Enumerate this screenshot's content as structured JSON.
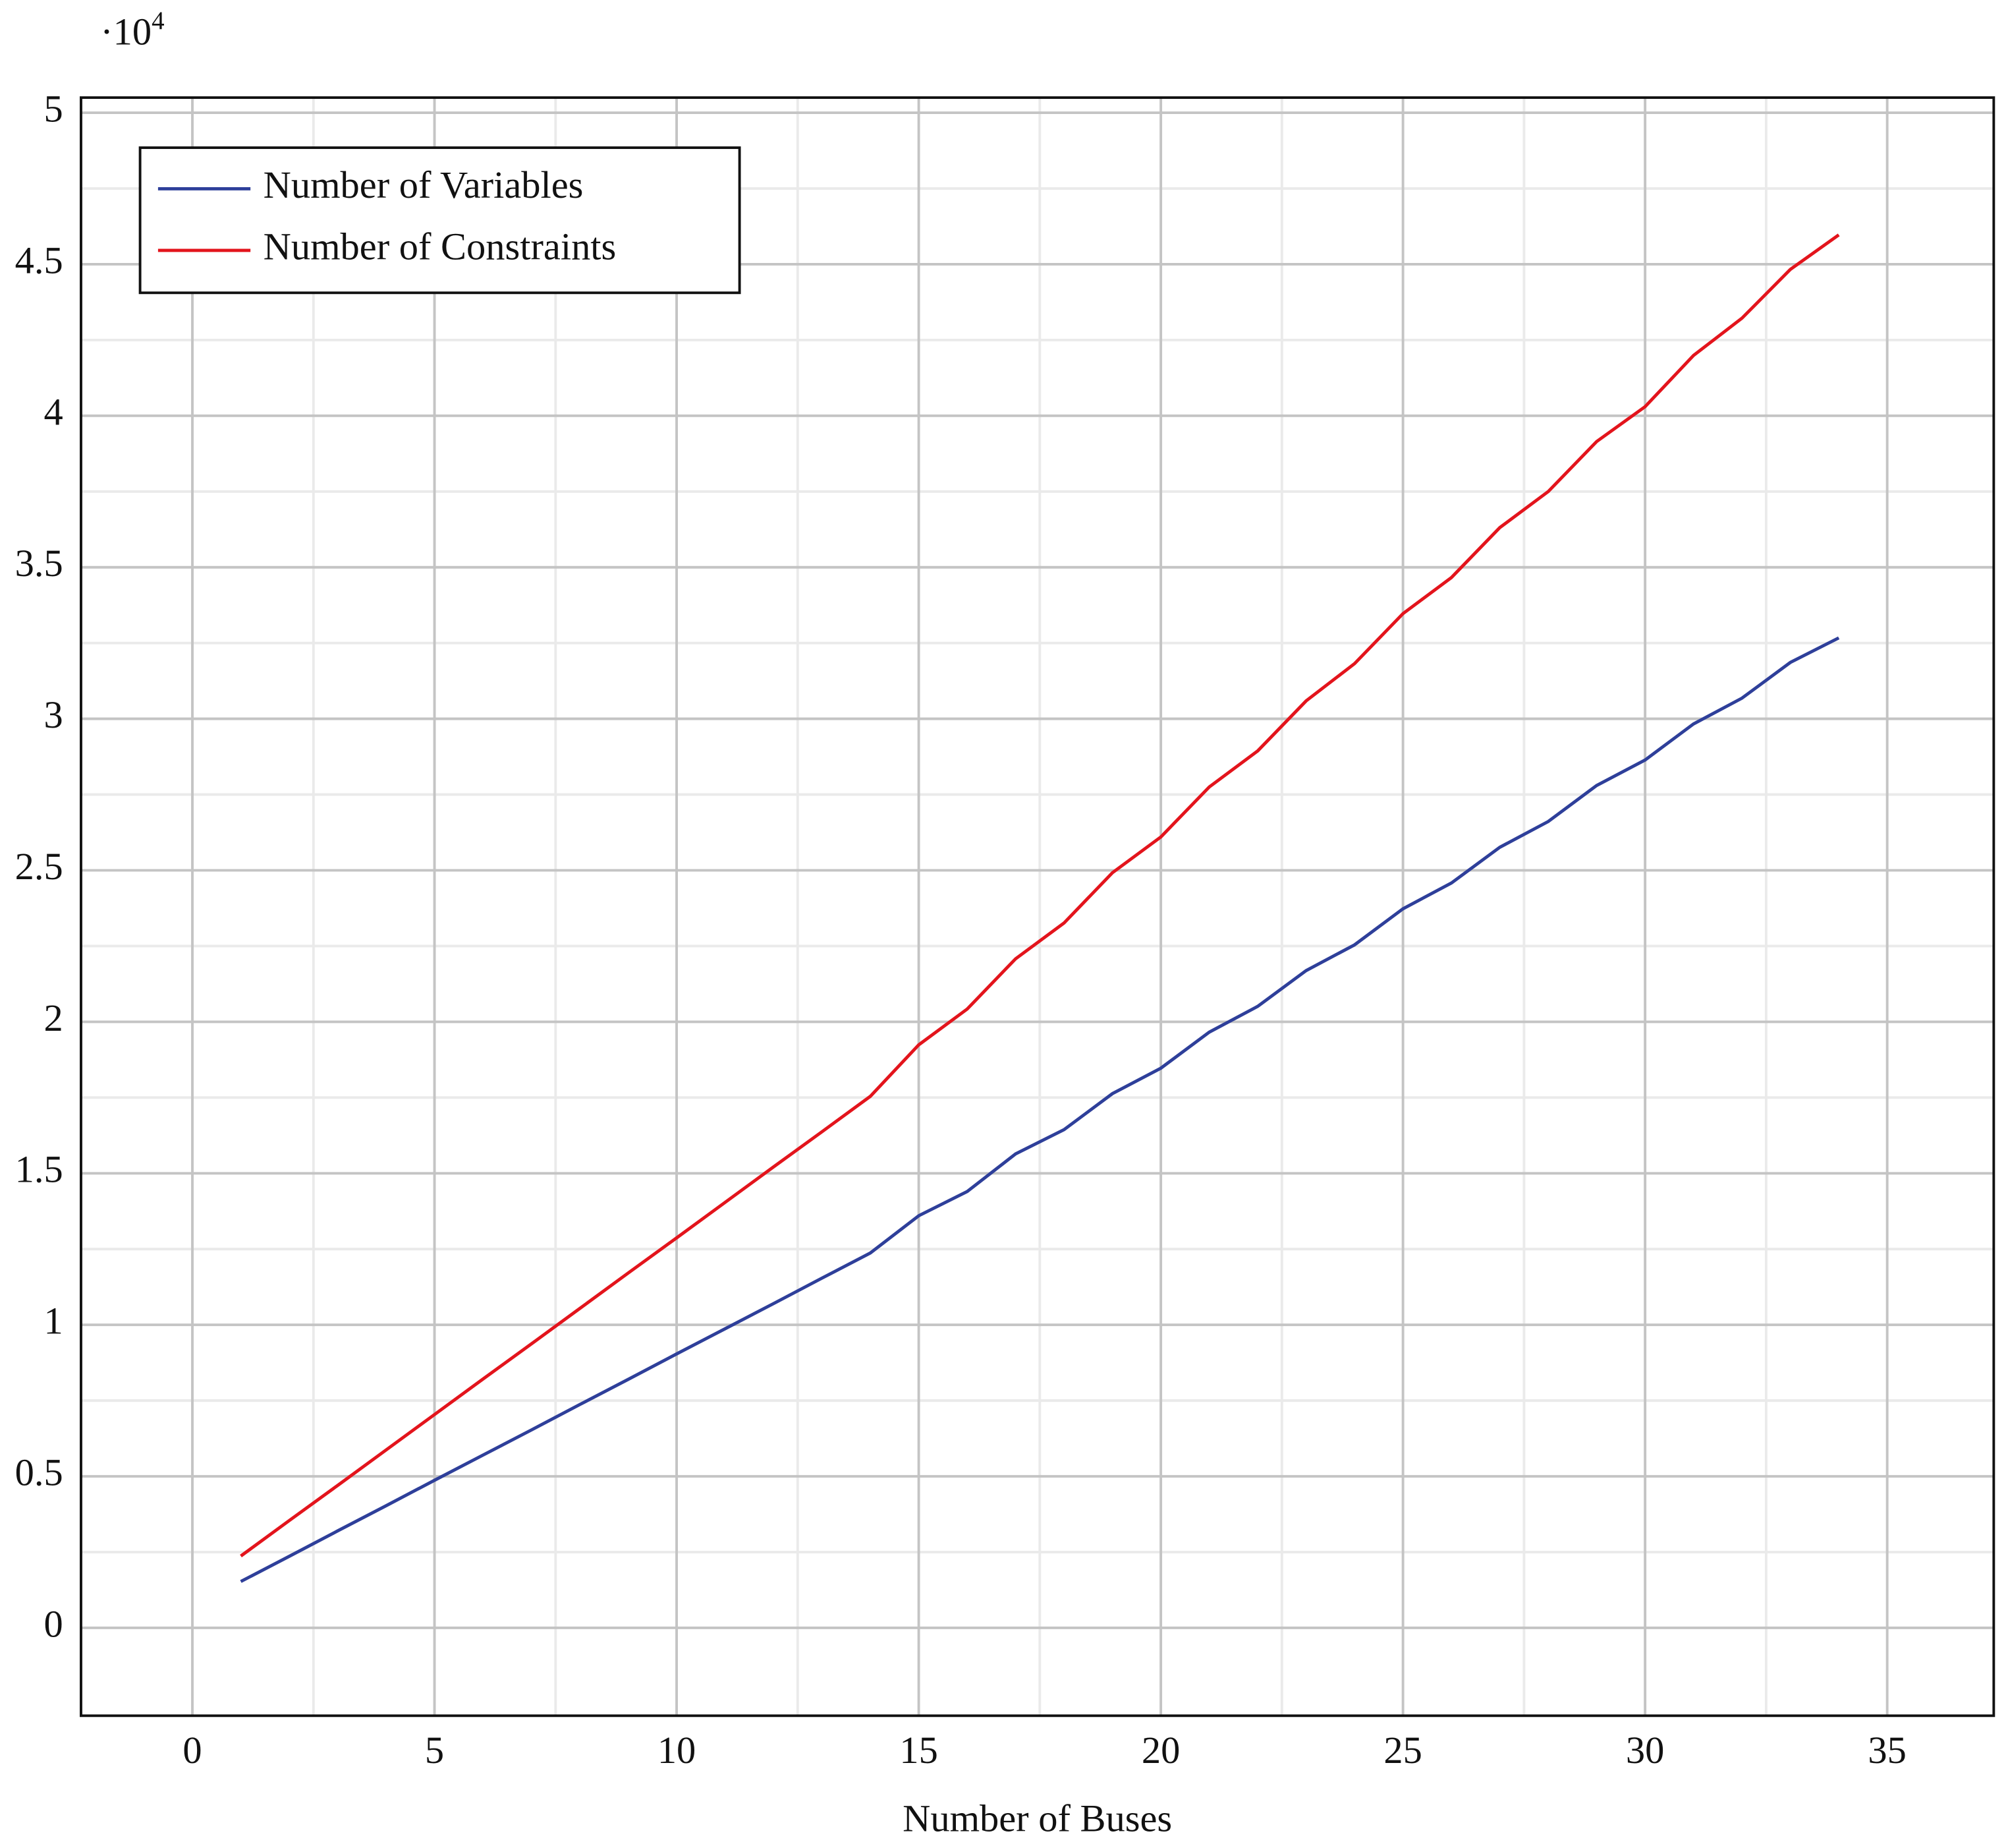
{
  "chart_data": {
    "type": "line",
    "xlabel": "Number of Buses",
    "y_multiplier": {
      "base": "·10",
      "exponent": "4"
    },
    "x": [
      1,
      2,
      3,
      4,
      5,
      6,
      7,
      8,
      9,
      10,
      11,
      12,
      13,
      14,
      15,
      16,
      17,
      18,
      19,
      20,
      21,
      22,
      23,
      24,
      25,
      26,
      27,
      28,
      29,
      30,
      31,
      32,
      33,
      34
    ],
    "series": [
      {
        "name": "Number of Variables",
        "color": "#2e3f9a",
        "values": [
          0.153,
          0.236,
          0.32,
          0.403,
          0.487,
          0.57,
          0.653,
          0.737,
          0.82,
          0.904,
          0.987,
          1.07,
          1.154,
          1.237,
          1.36,
          1.44,
          1.564,
          1.644,
          1.763,
          1.847,
          1.966,
          2.051,
          2.169,
          2.254,
          2.373,
          2.458,
          2.576,
          2.661,
          2.78,
          2.864,
          2.983,
          3.068,
          3.186,
          3.267
        ]
      },
      {
        "name": "Number of Constraints",
        "color": "#e3141c",
        "values": [
          0.237,
          0.354,
          0.47,
          0.587,
          0.704,
          0.821,
          0.937,
          1.054,
          1.171,
          1.287,
          1.404,
          1.521,
          1.637,
          1.754,
          1.924,
          2.042,
          2.208,
          2.326,
          2.492,
          2.61,
          2.775,
          2.894,
          3.059,
          3.182,
          3.347,
          3.466,
          3.631,
          3.75,
          3.915,
          4.03,
          4.199,
          4.322,
          4.483,
          4.597
        ]
      }
    ],
    "xlim": [
      -2.3,
      37.2
    ],
    "ylim": [
      -0.29,
      5.05
    ],
    "xticks": [
      0,
      5,
      10,
      15,
      20,
      25,
      30,
      35
    ],
    "yticks": [
      0,
      0.5,
      1,
      1.5,
      2,
      2.5,
      3,
      3.5,
      4,
      4.5,
      5
    ],
    "grid": true,
    "minor_grid": true,
    "legend": "upper-left"
  }
}
